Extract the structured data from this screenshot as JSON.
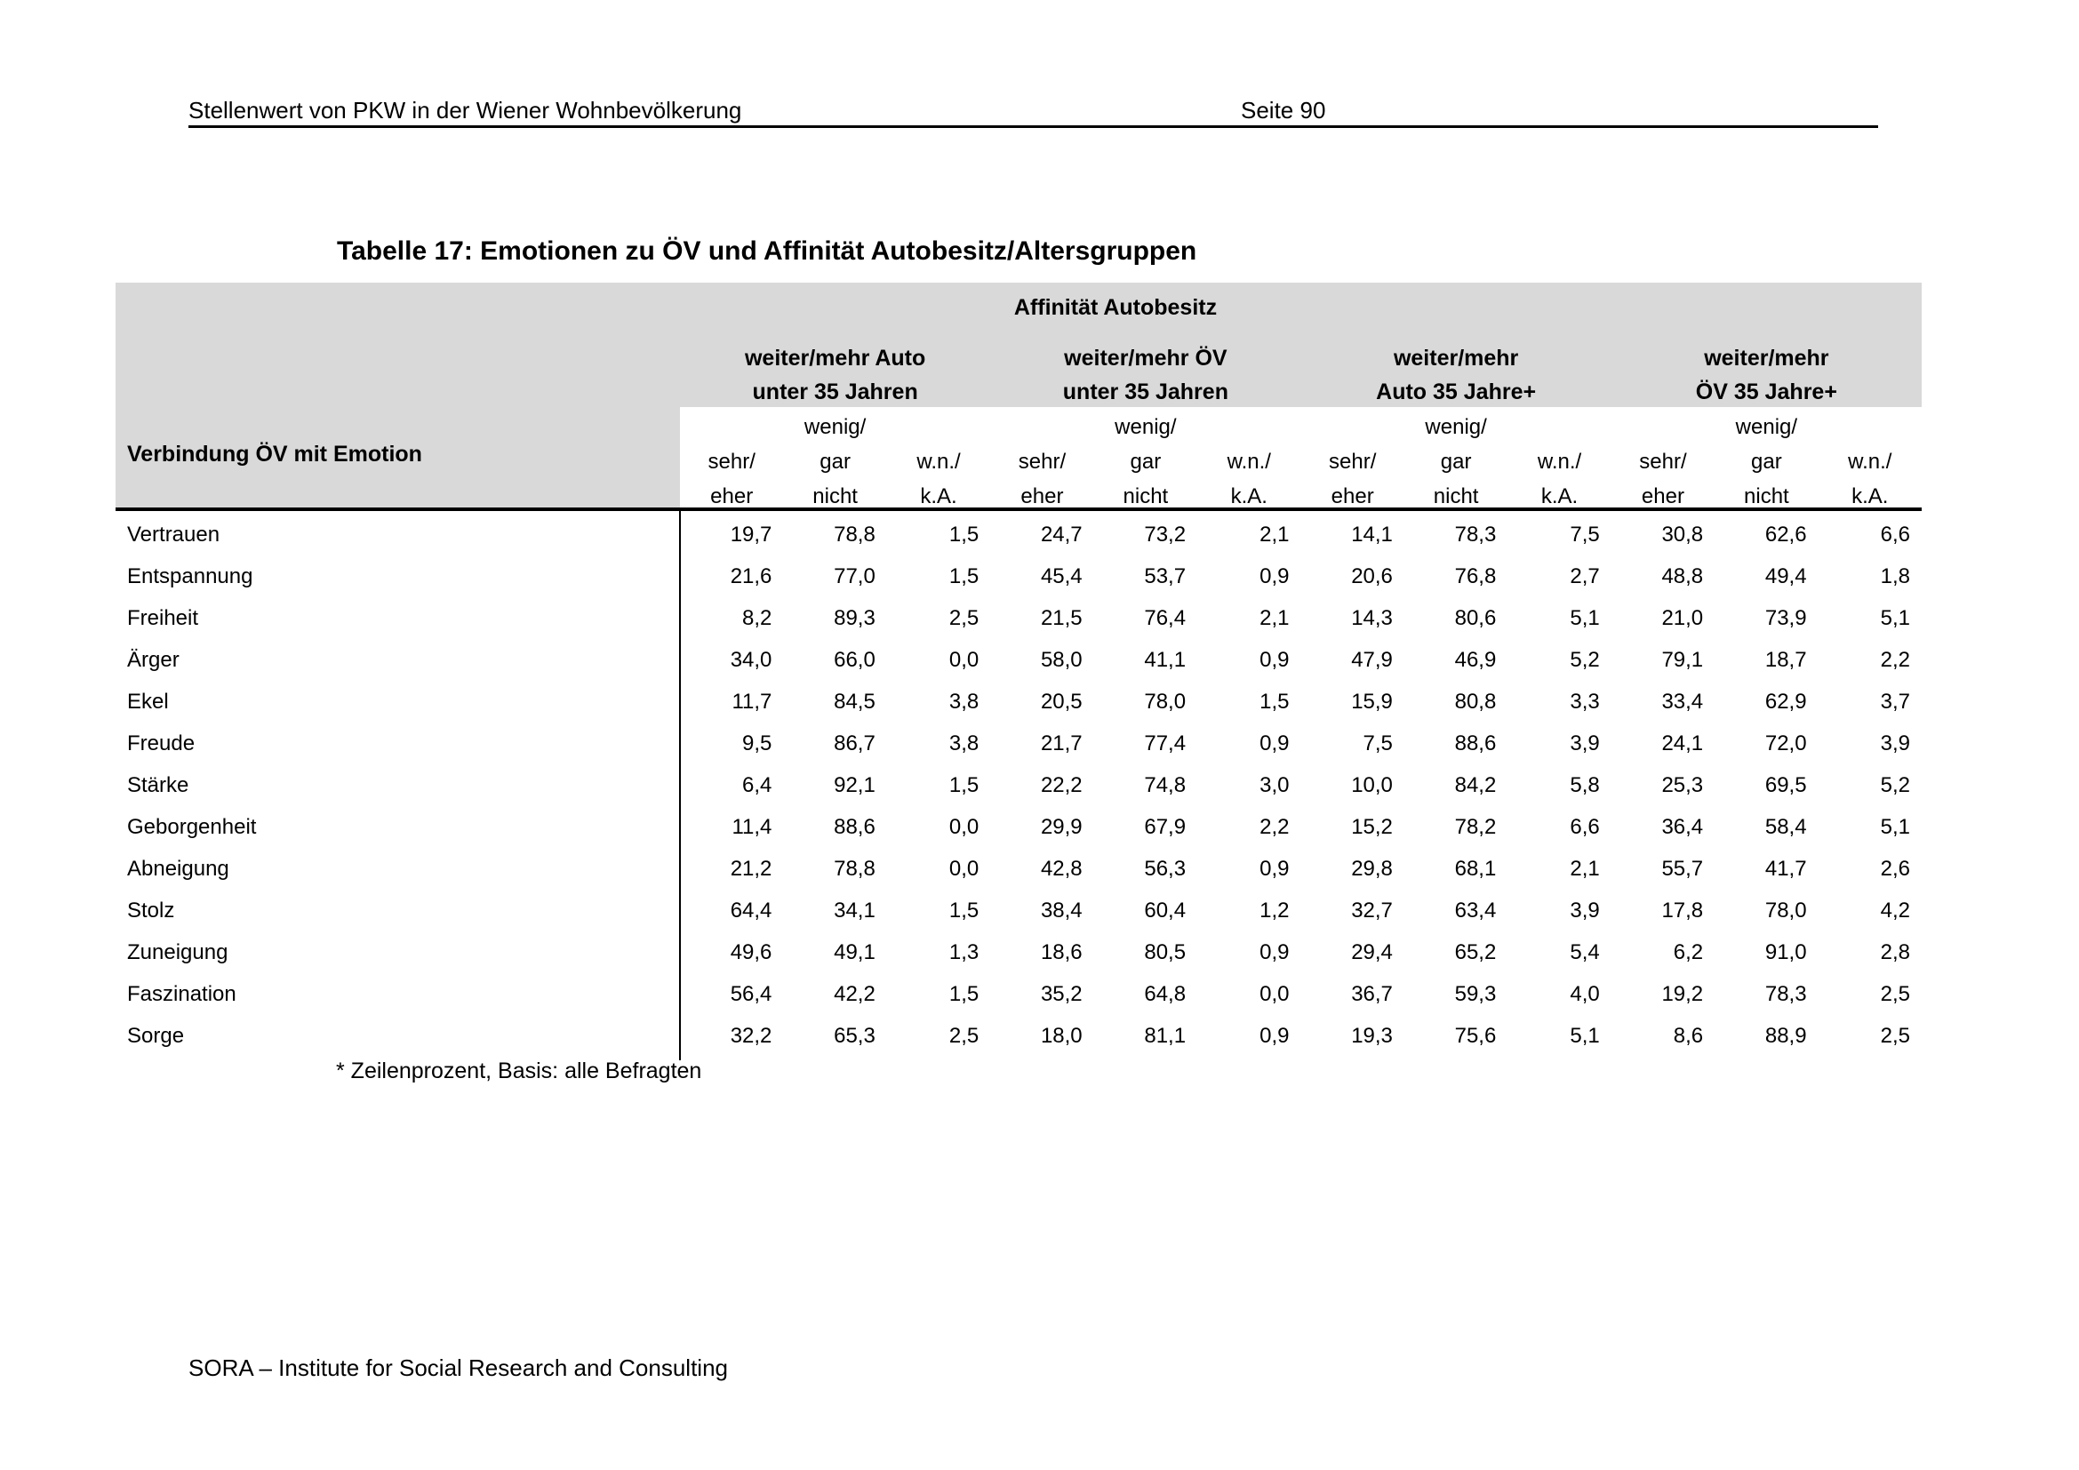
{
  "page_header": {
    "left": "Stellenwert von PKW in der Wiener Wohnbevölkerung",
    "right": "Seite 90"
  },
  "table_title": "Tabelle 17: Emotionen zu ÖV und Affinität Autobesitz/Altersgruppen",
  "table": {
    "spanner": "Affinität Autobesitz",
    "row_header": "Verbindung ÖV mit Emotion",
    "groups": [
      {
        "line1": "weiter/mehr Auto",
        "line2": "unter 35 Jahren"
      },
      {
        "line1": "weiter/mehr ÖV",
        "line2": "unter 35 Jahren"
      },
      {
        "line1": "weiter/mehr",
        "line2": "Auto 35 Jahre+"
      },
      {
        "line1": "weiter/mehr",
        "line2": "ÖV 35 Jahre+"
      }
    ],
    "subcolumns": [
      {
        "line1": "",
        "line2": "sehr/",
        "line3": "eher"
      },
      {
        "line1": "wenig/",
        "line2": "gar",
        "line3": "nicht"
      },
      {
        "line1": "",
        "line2": "w.n./",
        "line3": "k.A."
      }
    ],
    "rows": [
      {
        "label": "Vertrauen",
        "values": [
          "19,7",
          "78,8",
          "1,5",
          "24,7",
          "73,2",
          "2,1",
          "14,1",
          "78,3",
          "7,5",
          "30,8",
          "62,6",
          "6,6"
        ]
      },
      {
        "label": "Entspannung",
        "values": [
          "21,6",
          "77,0",
          "1,5",
          "45,4",
          "53,7",
          "0,9",
          "20,6",
          "76,8",
          "2,7",
          "48,8",
          "49,4",
          "1,8"
        ]
      },
      {
        "label": "Freiheit",
        "values": [
          "8,2",
          "89,3",
          "2,5",
          "21,5",
          "76,4",
          "2,1",
          "14,3",
          "80,6",
          "5,1",
          "21,0",
          "73,9",
          "5,1"
        ]
      },
      {
        "label": "Ärger",
        "values": [
          "34,0",
          "66,0",
          "0,0",
          "58,0",
          "41,1",
          "0,9",
          "47,9",
          "46,9",
          "5,2",
          "79,1",
          "18,7",
          "2,2"
        ]
      },
      {
        "label": "Ekel",
        "values": [
          "11,7",
          "84,5",
          "3,8",
          "20,5",
          "78,0",
          "1,5",
          "15,9",
          "80,8",
          "3,3",
          "33,4",
          "62,9",
          "3,7"
        ]
      },
      {
        "label": "Freude",
        "values": [
          "9,5",
          "86,7",
          "3,8",
          "21,7",
          "77,4",
          "0,9",
          "7,5",
          "88,6",
          "3,9",
          "24,1",
          "72,0",
          "3,9"
        ]
      },
      {
        "label": "Stärke",
        "values": [
          "6,4",
          "92,1",
          "1,5",
          "22,2",
          "74,8",
          "3,0",
          "10,0",
          "84,2",
          "5,8",
          "25,3",
          "69,5",
          "5,2"
        ]
      },
      {
        "label": "Geborgenheit",
        "values": [
          "11,4",
          "88,6",
          "0,0",
          "29,9",
          "67,9",
          "2,2",
          "15,2",
          "78,2",
          "6,6",
          "36,4",
          "58,4",
          "5,1"
        ]
      },
      {
        "label": "Abneigung",
        "values": [
          "21,2",
          "78,8",
          "0,0",
          "42,8",
          "56,3",
          "0,9",
          "29,8",
          "68,1",
          "2,1",
          "55,7",
          "41,7",
          "2,6"
        ]
      },
      {
        "label": "Stolz",
        "values": [
          "64,4",
          "34,1",
          "1,5",
          "38,4",
          "60,4",
          "1,2",
          "32,7",
          "63,4",
          "3,9",
          "17,8",
          "78,0",
          "4,2"
        ]
      },
      {
        "label": "Zuneigung",
        "values": [
          "49,6",
          "49,1",
          "1,3",
          "18,6",
          "80,5",
          "0,9",
          "29,4",
          "65,2",
          "5,4",
          "6,2",
          "91,0",
          "2,8"
        ]
      },
      {
        "label": "Faszination",
        "values": [
          "56,4",
          "42,2",
          "1,5",
          "35,2",
          "64,8",
          "0,0",
          "36,7",
          "59,3",
          "4,0",
          "19,2",
          "78,3",
          "2,5"
        ]
      },
      {
        "label": "Sorge",
        "values": [
          "32,2",
          "65,3",
          "2,5",
          "18,0",
          "81,1",
          "0,9",
          "19,3",
          "75,6",
          "5,1",
          "8,6",
          "88,9",
          "2,5"
        ]
      }
    ],
    "footnote": "* Zeilenprozent, Basis: alle Befragten"
  },
  "page_footer": "SORA – Institute for Social Research and Consulting",
  "colors": {
    "header_bg": "#d9d9d9",
    "text": "#000000",
    "background": "#ffffff"
  }
}
